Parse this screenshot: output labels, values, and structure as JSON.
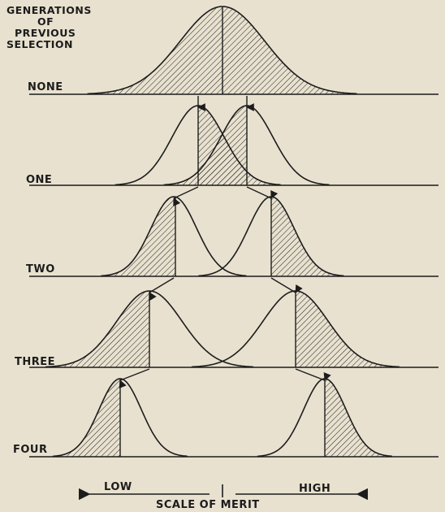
{
  "title_lines": [
    "GENERATIONS",
    "OF",
    "PREVIOUS",
    "SELECTION"
  ],
  "generations": [
    {
      "label": "NONE"
    },
    {
      "label": "ONE"
    },
    {
      "label": "TWO"
    },
    {
      "label": "THREE"
    },
    {
      "label": "FOUR"
    }
  ],
  "scale": {
    "low": "LOW",
    "high": "HIGH",
    "caption": "SCALE OF MERIT"
  },
  "colors": {
    "ink": "#1c1c1c",
    "paper": "#e8e1cf"
  }
}
